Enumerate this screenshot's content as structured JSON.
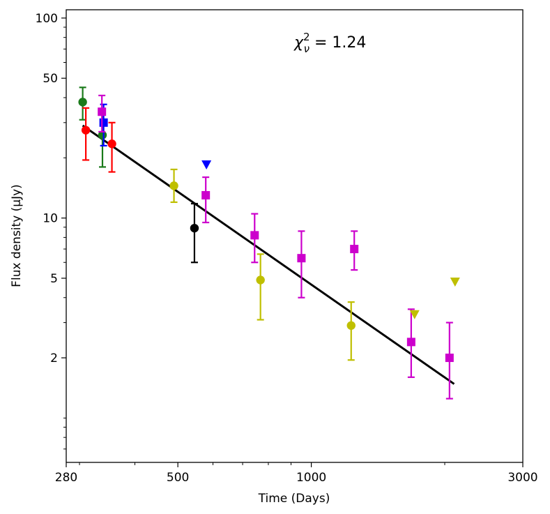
{
  "chart_data": {
    "type": "scatter",
    "title": "",
    "xlabel": "Time (Days)",
    "ylabel": "Flux density (μJy)",
    "xscale": "log",
    "yscale": "log",
    "xlim": [
      280,
      3000
    ],
    "ylim": [
      0.6,
      110
    ],
    "xticks": [
      {
        "value": 280,
        "label": "280"
      },
      {
        "value": 500,
        "label": "500"
      },
      {
        "value": 1000,
        "label": "1000"
      },
      {
        "value": 3000,
        "label": "3000"
      }
    ],
    "yticks": [
      {
        "value": 2,
        "label": "2"
      },
      {
        "value": 5,
        "label": "5"
      },
      {
        "value": 10,
        "label": "10"
      },
      {
        "value": 50,
        "label": "50"
      },
      {
        "value": 100,
        "label": "100"
      }
    ],
    "annotation": {
      "prefix": "χ",
      "superscript": "2",
      "subscript": "ν",
      "text": " = 1.24"
    },
    "fit_line": {
      "x": [
        305,
        2100
      ],
      "y": [
        29,
        1.48
      ],
      "color": "#000000"
    },
    "series": [
      {
        "name": "green",
        "color": "#1a7a1a",
        "marker": "circle",
        "points": [
          {
            "x": 305,
            "y": 38,
            "lo": 31,
            "hi": 45
          },
          {
            "x": 338,
            "y": 26,
            "lo": 18,
            "hi": 34
          }
        ]
      },
      {
        "name": "red",
        "color": "#ff0000",
        "marker": "circle",
        "points": [
          {
            "x": 310,
            "y": 27.5,
            "lo": 19.5,
            "hi": 35.5
          },
          {
            "x": 355,
            "y": 23.5,
            "lo": 17,
            "hi": 30
          }
        ]
      },
      {
        "name": "blue",
        "color": "#0000ff",
        "marker": "square",
        "points": [
          {
            "x": 340,
            "y": 30,
            "lo": 23,
            "hi": 37
          }
        ]
      },
      {
        "name": "blue-upper-limit",
        "color": "#0000ff",
        "marker": "triangle-down",
        "points": [
          {
            "x": 580,
            "y": 18.5
          }
        ]
      },
      {
        "name": "magenta",
        "color": "#cc00cc",
        "marker": "square",
        "points": [
          {
            "x": 337,
            "y": 34,
            "lo": 27,
            "hi": 41
          },
          {
            "x": 578,
            "y": 13,
            "lo": 9.5,
            "hi": 16
          },
          {
            "x": 745,
            "y": 8.2,
            "lo": 6,
            "hi": 10.5
          },
          {
            "x": 950,
            "y": 6.3,
            "lo": 4,
            "hi": 8.6
          },
          {
            "x": 1250,
            "y": 7,
            "lo": 5.5,
            "hi": 8.6
          },
          {
            "x": 1680,
            "y": 2.4,
            "lo": 1.6,
            "hi": 3.5
          },
          {
            "x": 2050,
            "y": 2.0,
            "lo": 1.25,
            "hi": 3.0
          }
        ]
      },
      {
        "name": "yellow",
        "color": "#bfbf00",
        "marker": "circle",
        "points": [
          {
            "x": 490,
            "y": 14.5,
            "lo": 12,
            "hi": 17.5
          },
          {
            "x": 768,
            "y": 4.9,
            "lo": 3.1,
            "hi": 6.6
          },
          {
            "x": 1230,
            "y": 2.9,
            "lo": 1.95,
            "hi": 3.8
          }
        ]
      },
      {
        "name": "yellow-upper-limit",
        "color": "#bfbf00",
        "marker": "triangle-down",
        "points": [
          {
            "x": 1710,
            "y": 3.3
          },
          {
            "x": 2110,
            "y": 4.8
          }
        ]
      },
      {
        "name": "black",
        "color": "#000000",
        "marker": "circle",
        "points": [
          {
            "x": 545,
            "y": 8.9,
            "lo": 6,
            "hi": 11.8
          }
        ]
      }
    ]
  }
}
